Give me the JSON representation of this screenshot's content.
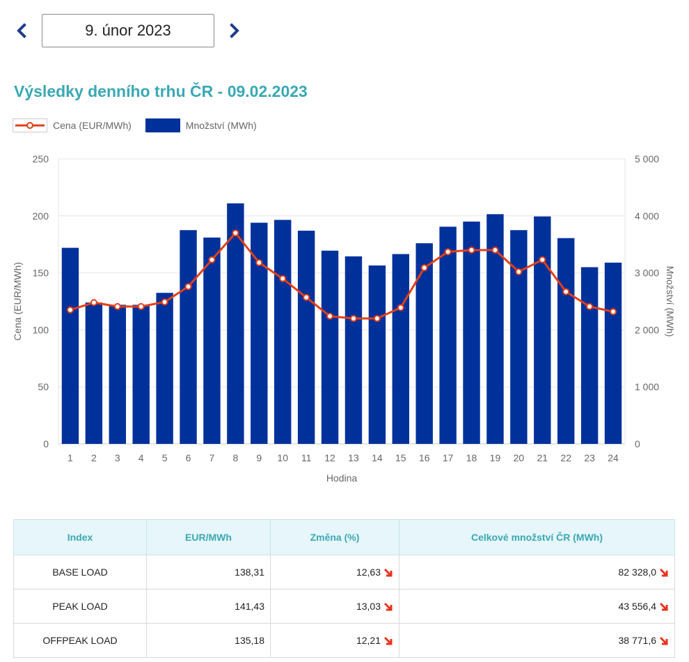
{
  "date_nav": {
    "date_label": "9. únor 2023"
  },
  "title": "Výsledky denního trhu ČR - 09.02.2023",
  "legend": {
    "price_label": "Cena (EUR/MWh)",
    "volume_label": "Množství (MWh)"
  },
  "colors": {
    "accent": "#3aa8b4",
    "bar": "#00319b",
    "line": "#e0401a",
    "nav_arrow": "#1e3c8c",
    "down_arrow": "#e8321e"
  },
  "chart_data": {
    "type": "bar",
    "xlabel": "Hodina",
    "ylabel_left": "Cena (EUR/MWh)",
    "ylabel_right": "Množství (MWh)",
    "ylim_left": [
      0,
      250
    ],
    "ylim_right": [
      0,
      5000
    ],
    "yticks_left": [
      "0",
      "50",
      "100",
      "150",
      "200",
      "250"
    ],
    "yticks_right": [
      "0",
      "1 000",
      "2 000",
      "3 000",
      "4 000",
      "5 000"
    ],
    "categories": [
      "1",
      "2",
      "3",
      "4",
      "5",
      "6",
      "7",
      "8",
      "9",
      "10",
      "11",
      "12",
      "13",
      "14",
      "15",
      "16",
      "17",
      "18",
      "19",
      "20",
      "21",
      "22",
      "23",
      "24"
    ],
    "grid": true,
    "legend_position": "top-left",
    "series": [
      {
        "name": "Množství (MWh)",
        "type": "bar",
        "axis": "right",
        "values": [
          3440,
          2480,
          2440,
          2440,
          2650,
          3750,
          3620,
          4220,
          3880,
          3930,
          3740,
          3390,
          3290,
          3130,
          3330,
          3520,
          3810,
          3900,
          4030,
          3750,
          3990,
          3610,
          3100,
          3180
        ]
      },
      {
        "name": "Cena (EUR/MWh)",
        "type": "line",
        "axis": "left",
        "values": [
          117.5,
          124,
          120.5,
          120.5,
          124.5,
          138,
          161.5,
          185,
          159,
          145,
          128.5,
          112,
          110,
          110,
          119.5,
          154.5,
          168.5,
          170,
          170,
          151,
          161.5,
          133.5,
          120.5,
          116
        ]
      }
    ]
  },
  "table": {
    "headers": [
      "Index",
      "EUR/MWh",
      "Změna (%)",
      "Celkové množství ČR (MWh)"
    ],
    "rows": [
      {
        "index": "BASE LOAD",
        "price": "138,31",
        "change": "12,63",
        "volume": "82 328,0"
      },
      {
        "index": "PEAK LOAD",
        "price": "141,43",
        "change": "13,03",
        "volume": "43 556,4"
      },
      {
        "index": "OFFPEAK LOAD",
        "price": "135,18",
        "change": "12,21",
        "volume": "38 771,6"
      }
    ]
  }
}
